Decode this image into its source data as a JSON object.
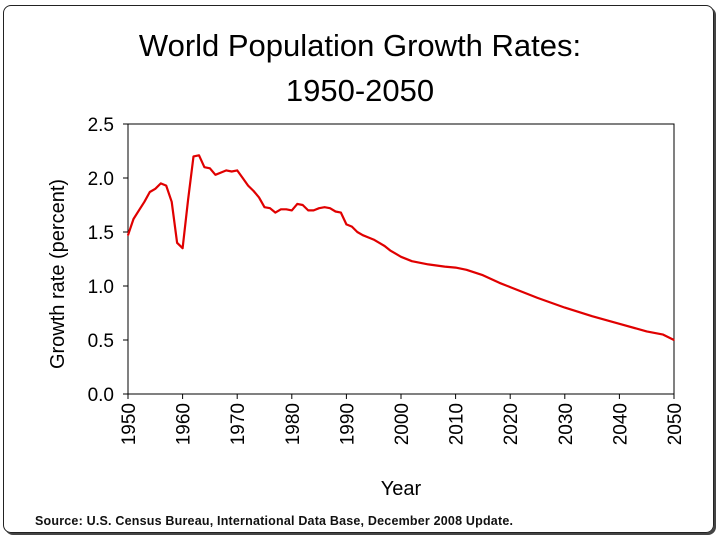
{
  "chart_data": {
    "type": "line",
    "title_line1": "World Population Growth Rates:",
    "title_line2": "1950-2050",
    "xlabel": "Year",
    "ylabel": "Growth rate (percent)",
    "xlim": [
      1950,
      2050
    ],
    "ylim": [
      0.0,
      2.5
    ],
    "xticks": [
      "1950",
      "1960",
      "1970",
      "1980",
      "1990",
      "2000",
      "2010",
      "2020",
      "2030",
      "2040",
      "2050"
    ],
    "yticks": [
      "0.0",
      "0.5",
      "1.0",
      "1.5",
      "2.0",
      "2.5"
    ],
    "series_color": "#e00000",
    "series": [
      {
        "name": "Growth rate",
        "x": [
          1950,
          1951,
          1952,
          1953,
          1954,
          1955,
          1956,
          1957,
          1958,
          1959,
          1960,
          1961,
          1962,
          1963,
          1964,
          1965,
          1966,
          1967,
          1968,
          1969,
          1970,
          1971,
          1972,
          1973,
          1974,
          1975,
          1976,
          1977,
          1978,
          1979,
          1980,
          1981,
          1982,
          1983,
          1984,
          1985,
          1986,
          1987,
          1988,
          1989,
          1990,
          1991,
          1992,
          1993,
          1994,
          1995,
          1996,
          1997,
          1998,
          1999,
          2000,
          2002,
          2005,
          2008,
          2010,
          2012,
          2015,
          2018,
          2020,
          2025,
          2030,
          2035,
          2040,
          2045,
          2048,
          2050
        ],
        "y": [
          1.47,
          1.62,
          1.7,
          1.78,
          1.87,
          1.9,
          1.95,
          1.93,
          1.78,
          1.4,
          1.35,
          1.8,
          2.2,
          2.21,
          2.1,
          2.09,
          2.03,
          2.05,
          2.07,
          2.06,
          2.07,
          2.0,
          1.93,
          1.88,
          1.82,
          1.73,
          1.72,
          1.68,
          1.71,
          1.71,
          1.7,
          1.76,
          1.75,
          1.7,
          1.7,
          1.72,
          1.73,
          1.72,
          1.69,
          1.68,
          1.57,
          1.55,
          1.5,
          1.47,
          1.45,
          1.43,
          1.4,
          1.37,
          1.33,
          1.3,
          1.27,
          1.23,
          1.2,
          1.18,
          1.17,
          1.15,
          1.1,
          1.03,
          0.99,
          0.89,
          0.8,
          0.72,
          0.65,
          0.58,
          0.55,
          0.5
        ]
      }
    ]
  },
  "footer": {
    "source": "Source: U.S. Census Bureau, International Data Base, December 2008 Update."
  }
}
